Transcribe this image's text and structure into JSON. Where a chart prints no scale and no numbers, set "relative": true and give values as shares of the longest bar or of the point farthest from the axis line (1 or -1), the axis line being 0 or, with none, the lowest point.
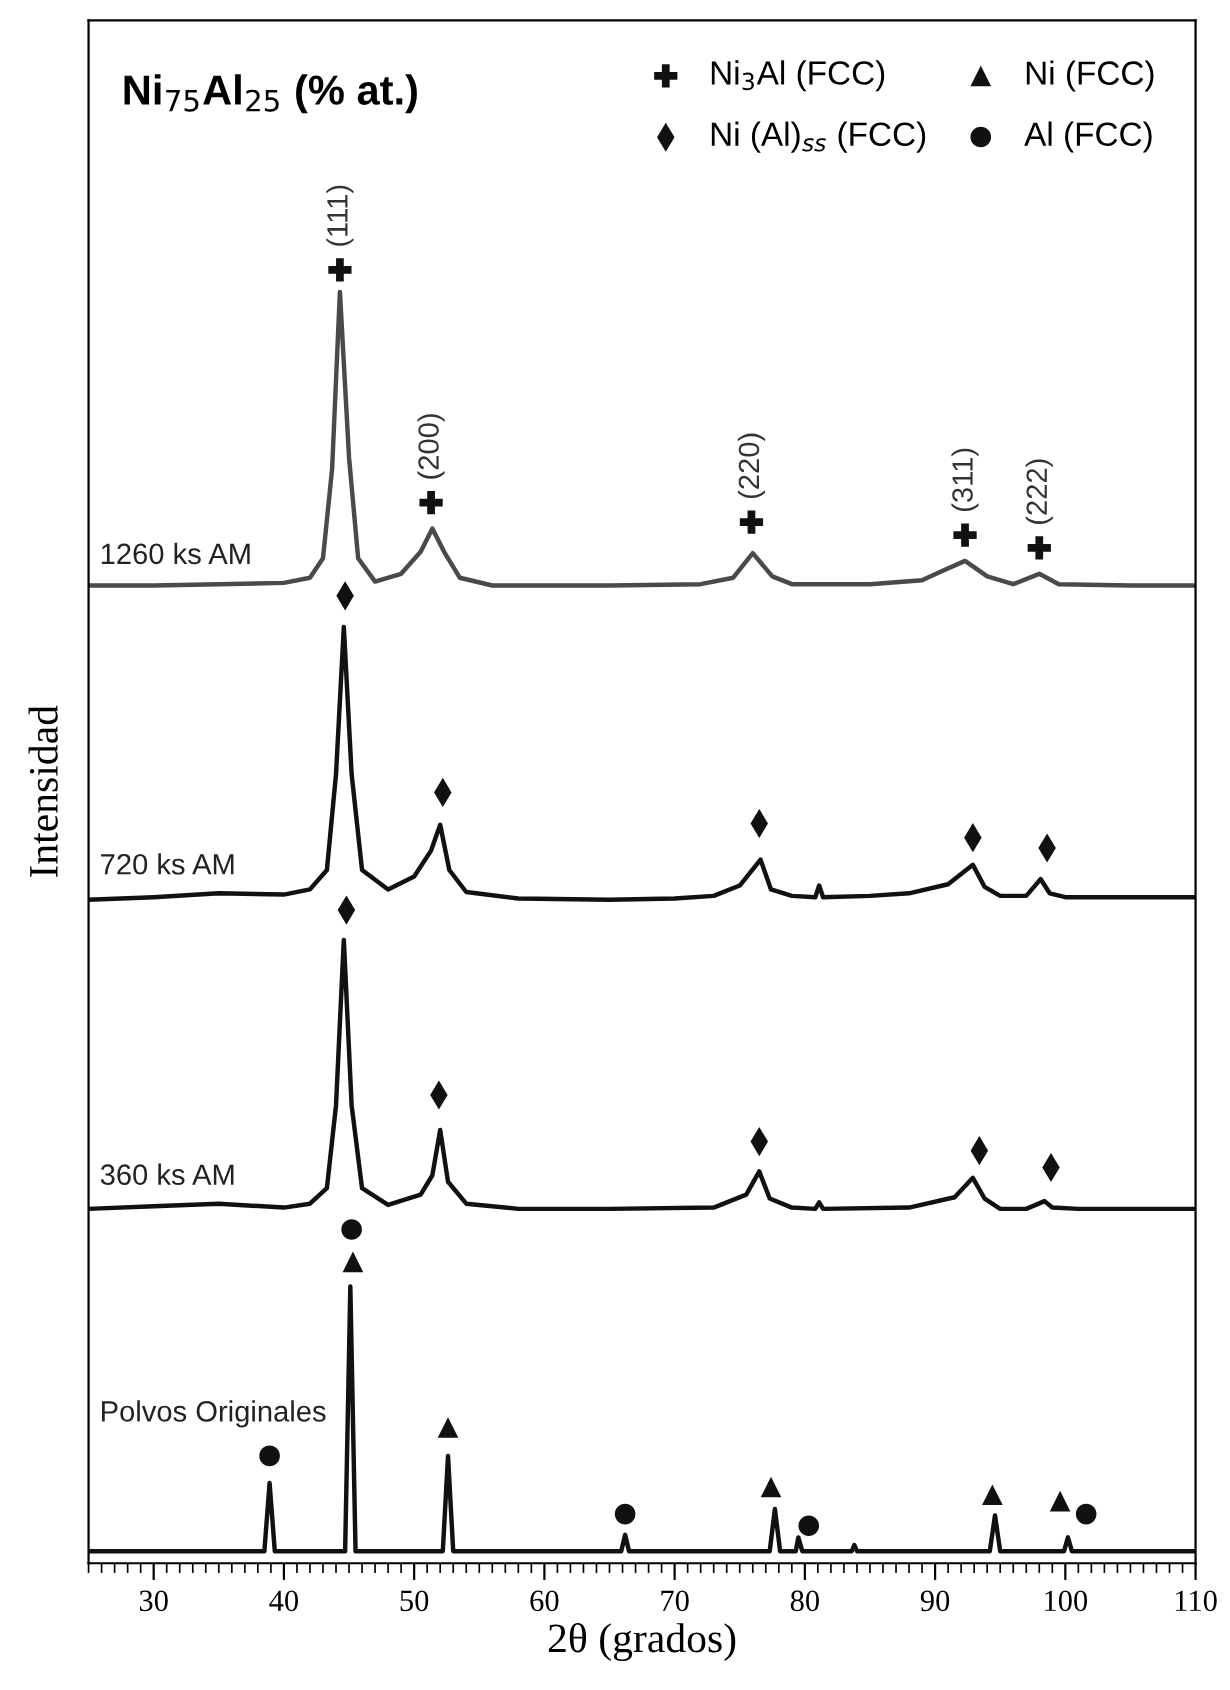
{
  "chart_data": {
    "type": "line",
    "relative": true,
    "title": "Ni$_{75}$Al$_{25}$ (% at.)",
    "xlabel": "2θ (grados)",
    "ylabel": "Intensidad",
    "xlim": [
      25,
      110
    ],
    "xticks": [
      30,
      40,
      50,
      60,
      70,
      80,
      90,
      100,
      110
    ],
    "tick_labels": "x",
    "grid": false,
    "legend": "top right",
    "annotations": [
      {
        "text": "(111)",
        "x": 44.3,
        "y": 1.0
      },
      {
        "text": "(200)",
        "x": 51.3,
        "y": 0.82
      },
      {
        "text": "(220)",
        "x": 75.9,
        "y": 0.805
      },
      {
        "text": "(311)",
        "x": 92.3,
        "y": 0.795
      },
      {
        "text": "(222)",
        "x": 98.0,
        "y": 0.785
      }
    ],
    "series": [
      {
        "name": "1260 ks AM",
        "color": "#4a4a4a",
        "marker": "none",
        "x": [
          25,
          30,
          35,
          40,
          42,
          43,
          43.7,
          44.3,
          45,
          45.7,
          47,
          49,
          50.5,
          51.4,
          52.3,
          53.5,
          56,
          65,
          72,
          74.5,
          76,
          77.5,
          79,
          85,
          89,
          90.5,
          92.3,
          94,
          96,
          98,
          99.5,
          105,
          110
        ],
        "values": [
          0.756,
          0.756,
          0.757,
          0.758,
          0.762,
          0.777,
          0.846,
          0.983,
          0.855,
          0.777,
          0.759,
          0.765,
          0.782,
          0.8,
          0.782,
          0.762,
          0.756,
          0.756,
          0.757,
          0.762,
          0.781,
          0.763,
          0.757,
          0.757,
          0.76,
          0.767,
          0.775,
          0.763,
          0.757,
          0.765,
          0.757,
          0.756,
          0.756
        ]
      },
      {
        "name": "720 ks AM",
        "color": "#111111",
        "marker": "none",
        "x": [
          25,
          30,
          35,
          40,
          42,
          43.3,
          44,
          44.6,
          45.2,
          46,
          48,
          50,
          51.3,
          52.0,
          52.7,
          54,
          58,
          65,
          70,
          73,
          75,
          76.6,
          77.4,
          79,
          80.8,
          81.1,
          81.4,
          85,
          88,
          91,
          92.9,
          93.8,
          95,
          97,
          98.1,
          98.8,
          100,
          105,
          110
        ],
        "values": [
          0.513,
          0.515,
          0.518,
          0.517,
          0.521,
          0.536,
          0.61,
          0.724,
          0.61,
          0.536,
          0.521,
          0.531,
          0.551,
          0.571,
          0.536,
          0.519,
          0.514,
          0.513,
          0.514,
          0.516,
          0.524,
          0.544,
          0.521,
          0.516,
          0.515,
          0.524,
          0.515,
          0.516,
          0.518,
          0.525,
          0.54,
          0.523,
          0.516,
          0.516,
          0.529,
          0.518,
          0.515,
          0.515,
          0.515
        ]
      },
      {
        "name": "360 ks AM",
        "color": "#111111",
        "marker": "none",
        "x": [
          25,
          30,
          35,
          40,
          42,
          43.3,
          44,
          44.6,
          45.2,
          46,
          48,
          50.5,
          51.4,
          52.0,
          52.6,
          54,
          58,
          65,
          73,
          75.5,
          76.5,
          77.3,
          79,
          80.8,
          81.1,
          81.4,
          88,
          91.5,
          92.9,
          93.8,
          95,
          97,
          98.4,
          99,
          101,
          105,
          110
        ],
        "values": [
          0.274,
          0.276,
          0.278,
          0.275,
          0.278,
          0.29,
          0.354,
          0.482,
          0.354,
          0.29,
          0.277,
          0.285,
          0.3,
          0.335,
          0.295,
          0.278,
          0.274,
          0.274,
          0.275,
          0.285,
          0.303,
          0.282,
          0.275,
          0.274,
          0.279,
          0.274,
          0.275,
          0.283,
          0.298,
          0.282,
          0.274,
          0.274,
          0.28,
          0.275,
          0.274,
          0.274,
          0.274
        ]
      },
      {
        "name": "Polvos Originales",
        "color": "#111111",
        "marker": "none",
        "x": [
          25,
          38.5,
          38.9,
          39.3,
          44.7,
          45.1,
          45.5,
          52.2,
          52.6,
          53.0,
          65.9,
          66.2,
          66.5,
          77.3,
          77.7,
          78.1,
          79.3,
          79.5,
          79.8,
          83.6,
          83.8,
          84.0,
          94.2,
          94.6,
          95.0,
          99.9,
          100.2,
          100.5,
          110
        ],
        "values": [
          0.0093,
          0.0093,
          0.062,
          0.0093,
          0.0093,
          0.214,
          0.0093,
          0.0093,
          0.083,
          0.0093,
          0.0093,
          0.022,
          0.0093,
          0.0093,
          0.042,
          0.0093,
          0.0093,
          0.02,
          0.0093,
          0.0093,
          0.014,
          0.0093,
          0.0093,
          0.037,
          0.0093,
          0.0093,
          0.02,
          0.0093,
          0.0093
        ]
      },
      {
        "name": "Ni$_{3}$Al (FCC)",
        "type": "scatter",
        "color": "#111111",
        "marker": "cross",
        "x": [
          44.3,
          51.3,
          75.9,
          92.3,
          98.0
        ],
        "values": [
          1.0,
          0.82,
          0.805,
          0.795,
          0.785
        ]
      },
      {
        "name": "Ni (Al)$_{ss}$ (FCC)",
        "type": "scatter",
        "color": "#111111",
        "marker": "diamond",
        "x": [
          44.7,
          52.2,
          76.5,
          92.9,
          98.6,
          44.8,
          51.9,
          76.5,
          93.4,
          98.9
        ],
        "values": [
          0.748,
          0.596,
          0.572,
          0.561,
          0.553,
          0.505,
          0.362,
          0.326,
          0.319,
          0.306
        ]
      },
      {
        "name": "Ni (FCC)",
        "type": "scatter",
        "color": "#111111",
        "marker": "triangle",
        "x": [
          45.3,
          52.6,
          77.4,
          94.4,
          99.6
        ],
        "values": [
          0.233,
          0.105,
          0.059,
          0.053,
          0.048
        ]
      },
      {
        "name": "Al (FCC)",
        "type": "scatter",
        "color": "#111111",
        "marker": "circle",
        "x": [
          45.2,
          38.9,
          66.2,
          80.3,
          101.6
        ],
        "values": [
          0.258,
          0.083,
          0.038,
          0.029,
          0.038
        ]
      }
    ]
  }
}
